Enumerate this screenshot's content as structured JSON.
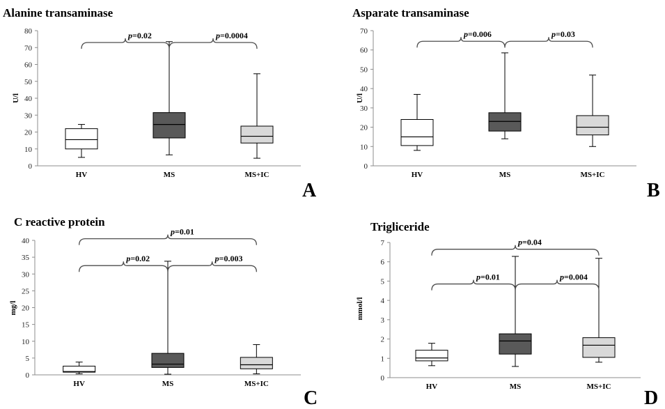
{
  "chart_data": [
    {
      "panel": "A",
      "type": "box",
      "title": "Alanine transaminase",
      "ylabel": "U/l",
      "ylim": [
        0,
        80
      ],
      "yticks": [
        0,
        10,
        20,
        30,
        40,
        50,
        60,
        70,
        80
      ],
      "categories": [
        "HV",
        "MS",
        "MS+IC"
      ],
      "boxes": [
        {
          "min": 5,
          "q1": 10,
          "median": 15.5,
          "q3": 22,
          "max": 24.5,
          "fill": "#ffffff"
        },
        {
          "min": 6.5,
          "q1": 16.5,
          "median": 24.5,
          "q3": 31.5,
          "max": 73.5,
          "fill": "#595959"
        },
        {
          "min": 4.5,
          "q1": 13.5,
          "median": 17.5,
          "q3": 23.5,
          "max": 54.5,
          "fill": "#d9d9d9"
        }
      ],
      "comparisons": [
        {
          "groups": [
            "HV",
            "MS"
          ],
          "p": "=0.02",
          "level": 73
        },
        {
          "groups": [
            "MS",
            "MS+IC"
          ],
          "p": "=0.0004",
          "level": 73
        }
      ]
    },
    {
      "panel": "B",
      "type": "box",
      "title": "Asparate transaminase",
      "ylabel": "U/l",
      "ylim": [
        0,
        70
      ],
      "yticks": [
        0,
        10,
        20,
        30,
        40,
        50,
        60,
        70
      ],
      "categories": [
        "HV",
        "MS",
        "MS+IC"
      ],
      "boxes": [
        {
          "min": 8,
          "q1": 10.5,
          "median": 15,
          "q3": 24,
          "max": 37,
          "fill": "#ffffff"
        },
        {
          "min": 14,
          "q1": 18,
          "median": 23,
          "q3": 27.5,
          "max": 58.5,
          "fill": "#595959"
        },
        {
          "min": 10,
          "q1": 16,
          "median": 20,
          "q3": 26,
          "max": 47,
          "fill": "#d9d9d9"
        }
      ],
      "comparisons": [
        {
          "groups": [
            "HV",
            "MS"
          ],
          "p": "=0.006",
          "level": 64.5
        },
        {
          "groups": [
            "MS",
            "MS+IC"
          ],
          "p": "=0.03",
          "level": 64.5
        }
      ]
    },
    {
      "panel": "C",
      "type": "box",
      "title": "C reactive protein",
      "ylabel": "mg/l",
      "ylim": [
        0,
        40
      ],
      "yticks": [
        0,
        5,
        10,
        15,
        20,
        25,
        30,
        35,
        40
      ],
      "categories": [
        "HV",
        "MS",
        "MS+IC"
      ],
      "boxes": [
        {
          "min": 0.3,
          "q1": 0.8,
          "median": 1,
          "q3": 2.6,
          "max": 3.8,
          "fill": "#ffffff"
        },
        {
          "min": 0.2,
          "q1": 2.2,
          "median": 3.2,
          "q3": 6.4,
          "max": 33.8,
          "fill": "#595959"
        },
        {
          "min": 0.3,
          "q1": 1.8,
          "median": 3,
          "q3": 5.2,
          "max": 9,
          "fill": "#d9d9d9"
        }
      ],
      "comparisons": [
        {
          "groups": [
            "HV",
            "MS"
          ],
          "p": "=0.02",
          "level": 32.5
        },
        {
          "groups": [
            "MS",
            "MS+IC"
          ],
          "p": "=0.003",
          "level": 32.5
        },
        {
          "groups": [
            "HV",
            "MS+IC"
          ],
          "p": "=0.01",
          "level": 40.5
        }
      ]
    },
    {
      "panel": "D",
      "type": "box",
      "title": "Trigliceride",
      "ylabel": "mmol/l",
      "ylim": [
        0,
        7
      ],
      "yticks": [
        0,
        1,
        2,
        3,
        4,
        5,
        6,
        7
      ],
      "categories": [
        "HV",
        "MS",
        "MS+IC"
      ],
      "boxes": [
        {
          "min": 0.62,
          "q1": 0.87,
          "median": 1.02,
          "q3": 1.42,
          "max": 1.78,
          "fill": "#ffffff"
        },
        {
          "min": 0.58,
          "q1": 1.22,
          "median": 1.9,
          "q3": 2.27,
          "max": 6.28,
          "fill": "#595959"
        },
        {
          "min": 0.8,
          "q1": 1.05,
          "median": 1.68,
          "q3": 2.07,
          "max": 6.18,
          "fill": "#d9d9d9"
        }
      ],
      "comparisons": [
        {
          "groups": [
            "HV",
            "MS"
          ],
          "p": "=0.01",
          "level": 4.85
        },
        {
          "groups": [
            "MS",
            "MS+IC"
          ],
          "p": "=0.004",
          "level": 4.85
        },
        {
          "groups": [
            "HV",
            "MS+IC"
          ],
          "p": "=0.04",
          "level": 6.65
        }
      ]
    }
  ]
}
